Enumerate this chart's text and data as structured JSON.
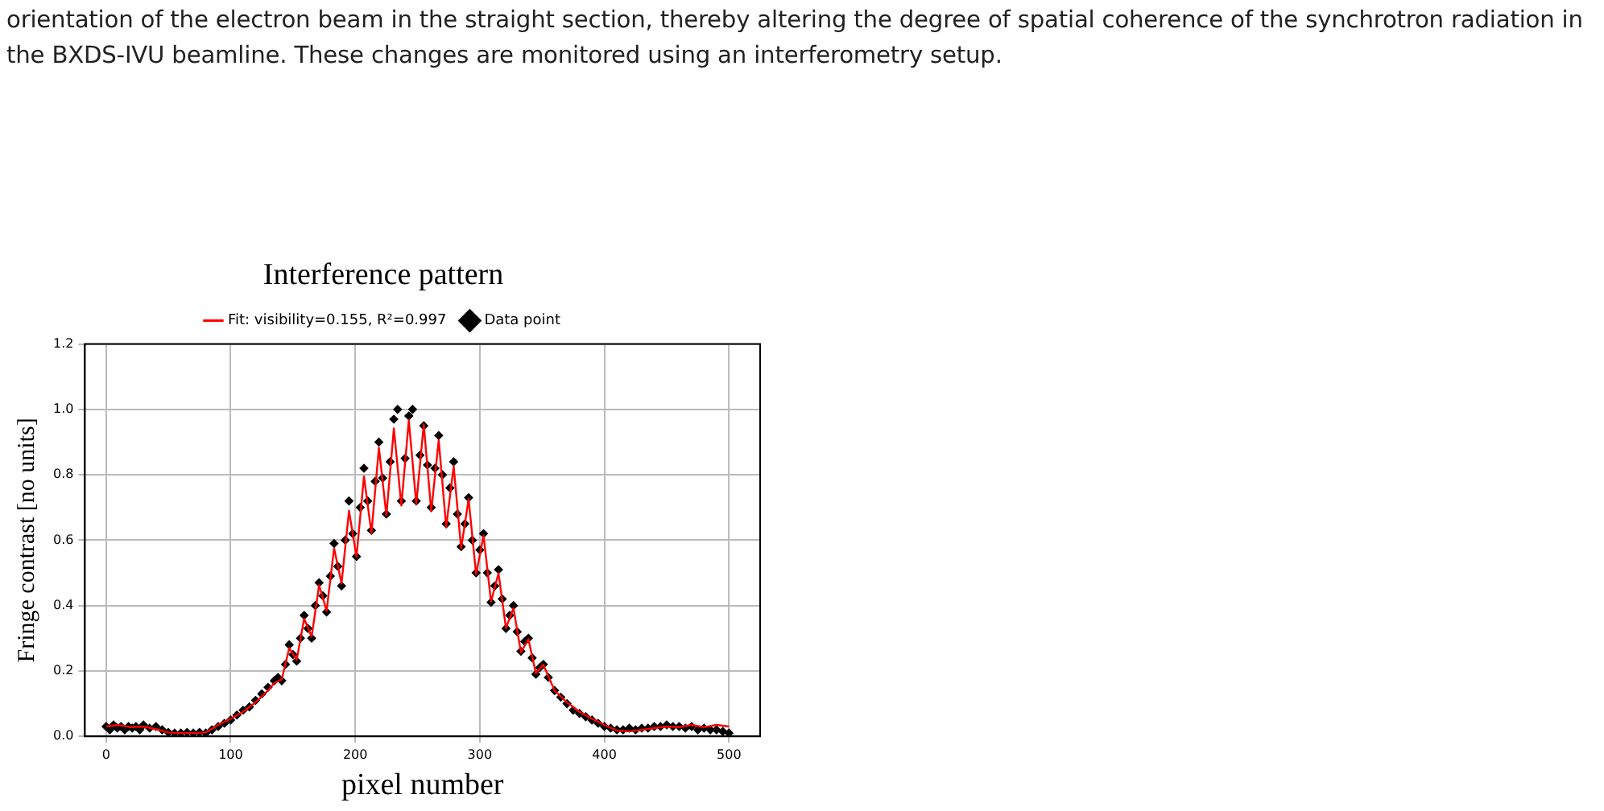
{
  "chart_data": {
    "type": "scatter",
    "title": "Interference pattern",
    "xlabel": "pixel number",
    "ylabel": "Fringe contrast [no units]",
    "annotations": [
      "orientation of the electron beam in the straight section, thereby altering the degree of spatial coherence of the synchrotron radiation in the BXDS-IVU beamline. These changes are monitored using an interferometry setup."
    ],
    "xlim": [
      -17,
      525
    ],
    "xticks": [
      0,
      100,
      200,
      300,
      400,
      500
    ],
    "ylim": [
      0,
      1.2
    ],
    "yticks": [
      {
        "value": 0,
        "label": "0.0"
      },
      0.2,
      0.4,
      0.6,
      0.8,
      {
        "value": 1,
        "label": "1.0"
      },
      1.2
    ],
    "grid": true,
    "legend": "top",
    "series": [
      {
        "name": "Fit: visibility=0.155, R²=0.997",
        "type": "line",
        "color": "#ff0000",
        "marker": "none",
        "line_style": "solid",
        "x": [
          0,
          10,
          20,
          30,
          40,
          50,
          60,
          70,
          80,
          90,
          100,
          110,
          120,
          130,
          135,
          141,
          147,
          153,
          159,
          165,
          171,
          177,
          183,
          189,
          195,
          201,
          207,
          213,
          219,
          225,
          231,
          237,
          243,
          249,
          255,
          261,
          267,
          273,
          279,
          285,
          291,
          297,
          303,
          309,
          315,
          321,
          327,
          333,
          339,
          345,
          351,
          360,
          370,
          380,
          390,
          400,
          410,
          420,
          430,
          440,
          450,
          460,
          470,
          480,
          490,
          500
        ],
        "values": [
          0.03,
          0.035,
          0.028,
          0.03,
          0.022,
          0.012,
          0.01,
          0.01,
          0.012,
          0.035,
          0.054,
          0.075,
          0.104,
          0.14,
          0.163,
          0.174,
          0.27,
          0.234,
          0.36,
          0.305,
          0.462,
          0.384,
          0.575,
          0.468,
          0.69,
          0.549,
          0.795,
          0.621,
          0.883,
          0.676,
          0.942,
          0.706,
          0.967,
          0.711,
          0.954,
          0.688,
          0.906,
          0.641,
          0.826,
          0.575,
          0.726,
          0.496,
          0.614,
          0.412,
          0.499,
          0.331,
          0.392,
          0.257,
          0.297,
          0.193,
          0.219,
          0.14,
          0.104,
          0.075,
          0.054,
          0.035,
          0.018,
          0.015,
          0.02,
          0.025,
          0.03,
          0.028,
          0.035,
          0.028,
          0.035,
          0.03
        ]
      },
      {
        "name": "Data point",
        "type": "scatter",
        "color": "#000000",
        "marker": "diamond",
        "x": [
          0,
          3,
          6,
          9,
          12,
          15,
          18,
          21,
          24,
          27,
          30,
          35,
          40,
          45,
          50,
          55,
          60,
          65,
          70,
          75,
          80,
          85,
          90,
          95,
          100,
          105,
          110,
          115,
          120,
          125,
          130,
          135,
          138,
          141,
          144,
          147,
          150,
          153,
          156,
          159,
          162,
          165,
          168,
          171,
          174,
          177,
          180,
          183,
          186,
          189,
          192,
          195,
          198,
          201,
          204,
          207,
          210,
          213,
          216,
          219,
          222,
          225,
          228,
          231,
          234,
          237,
          240,
          243,
          246,
          249,
          252,
          255,
          258,
          261,
          264,
          267,
          270,
          273,
          276,
          279,
          282,
          285,
          288,
          291,
          294,
          297,
          300,
          303,
          306,
          309,
          312,
          315,
          318,
          321,
          324,
          327,
          330,
          333,
          336,
          339,
          342,
          345,
          348,
          351,
          355,
          360,
          365,
          370,
          375,
          380,
          385,
          390,
          395,
          400,
          405,
          410,
          415,
          420,
          425,
          430,
          435,
          440,
          445,
          450,
          455,
          460,
          465,
          470,
          475,
          480,
          485,
          490,
          495,
          500
        ],
        "values": [
          0.03,
          0.02,
          0.035,
          0.025,
          0.03,
          0.02,
          0.03,
          0.025,
          0.03,
          0.02,
          0.035,
          0.025,
          0.03,
          0.02,
          0.012,
          0.01,
          0.01,
          0.012,
          0.01,
          0.012,
          0.01,
          0.02,
          0.03,
          0.04,
          0.05,
          0.065,
          0.08,
          0.09,
          0.11,
          0.13,
          0.15,
          0.17,
          0.18,
          0.17,
          0.22,
          0.28,
          0.25,
          0.23,
          0.3,
          0.37,
          0.33,
          0.3,
          0.4,
          0.47,
          0.43,
          0.38,
          0.49,
          0.59,
          0.52,
          0.46,
          0.6,
          0.72,
          0.62,
          0.55,
          0.7,
          0.82,
          0.72,
          0.63,
          0.78,
          0.9,
          0.79,
          0.68,
          0.84,
          0.97,
          1,
          0.72,
          0.85,
          0.98,
          1,
          0.72,
          0.86,
          0.95,
          0.83,
          0.7,
          0.82,
          0.92,
          0.8,
          0.65,
          0.76,
          0.84,
          0.68,
          0.58,
          0.65,
          0.73,
          0.6,
          0.5,
          0.57,
          0.62,
          0.5,
          0.41,
          0.46,
          0.51,
          0.42,
          0.33,
          0.37,
          0.4,
          0.32,
          0.26,
          0.29,
          0.3,
          0.24,
          0.19,
          0.21,
          0.22,
          0.18,
          0.14,
          0.12,
          0.1,
          0.08,
          0.07,
          0.06,
          0.05,
          0.04,
          0.03,
          0.025,
          0.02,
          0.02,
          0.025,
          0.02,
          0.025,
          0.025,
          0.03,
          0.03,
          0.035,
          0.03,
          0.03,
          0.025,
          0.03,
          0.02,
          0.025,
          0.02,
          0.02,
          0.015,
          0.01
        ]
      }
    ]
  }
}
